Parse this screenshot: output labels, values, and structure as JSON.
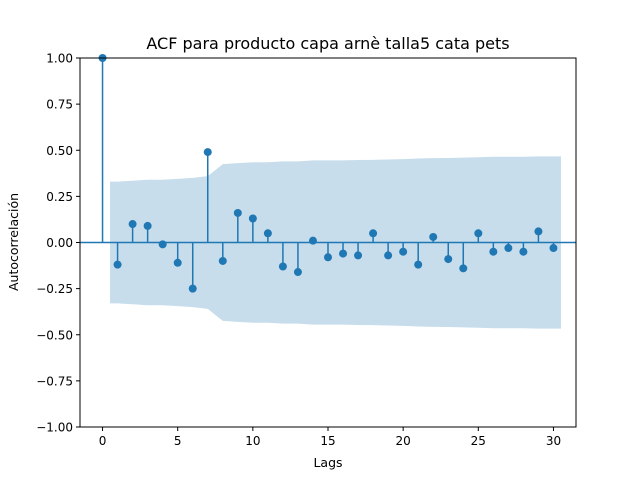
{
  "chart_data": {
    "type": "scatter",
    "title": "ACF para producto capa arnè talla5 cata pets",
    "xlabel": "Lags",
    "ylabel": "Autocorrelación",
    "xlim": [
      -1.5,
      31.5
    ],
    "ylim": [
      -1.0,
      1.0
    ],
    "x_ticks": [
      0,
      5,
      10,
      15,
      20,
      25,
      30
    ],
    "x_tick_labels": [
      "0",
      "5",
      "10",
      "15",
      "20",
      "25",
      "30"
    ],
    "y_ticks": [
      1.0,
      0.75,
      0.5,
      0.25,
      0.0,
      -0.25,
      -0.5,
      -0.75,
      -1.0
    ],
    "y_tick_labels": [
      "1.00",
      "0.75",
      "0.50",
      "0.25",
      "0.00",
      "−0.25",
      "−0.50",
      "−0.75",
      "−1.00"
    ],
    "lags": [
      0,
      1,
      2,
      3,
      4,
      5,
      6,
      7,
      8,
      9,
      10,
      11,
      12,
      13,
      14,
      15,
      16,
      17,
      18,
      19,
      20,
      21,
      22,
      23,
      24,
      25,
      26,
      27,
      28,
      29,
      30
    ],
    "values": [
      1.0,
      -0.12,
      0.1,
      0.09,
      -0.01,
      -0.11,
      -0.25,
      0.49,
      -0.1,
      0.16,
      0.13,
      0.05,
      -0.13,
      -0.16,
      0.01,
      -0.08,
      -0.06,
      -0.07,
      0.05,
      -0.07,
      -0.05,
      -0.12,
      0.03,
      -0.09,
      -0.14,
      0.05,
      -0.05,
      -0.03,
      -0.05,
      0.06,
      -0.03
    ],
    "confint_upper": [
      null,
      0.33,
      0.335,
      0.34,
      0.34,
      0.345,
      0.35,
      0.36,
      0.425,
      0.43,
      0.435,
      0.435,
      0.44,
      0.44,
      0.445,
      0.445,
      0.445,
      0.447,
      0.448,
      0.45,
      0.452,
      0.455,
      0.457,
      0.458,
      0.46,
      0.462,
      0.465,
      0.465,
      0.465,
      0.467,
      0.467
    ],
    "colors": {
      "series": "#1f77b4",
      "confint": "#1f77b4"
    },
    "grid": false
  }
}
